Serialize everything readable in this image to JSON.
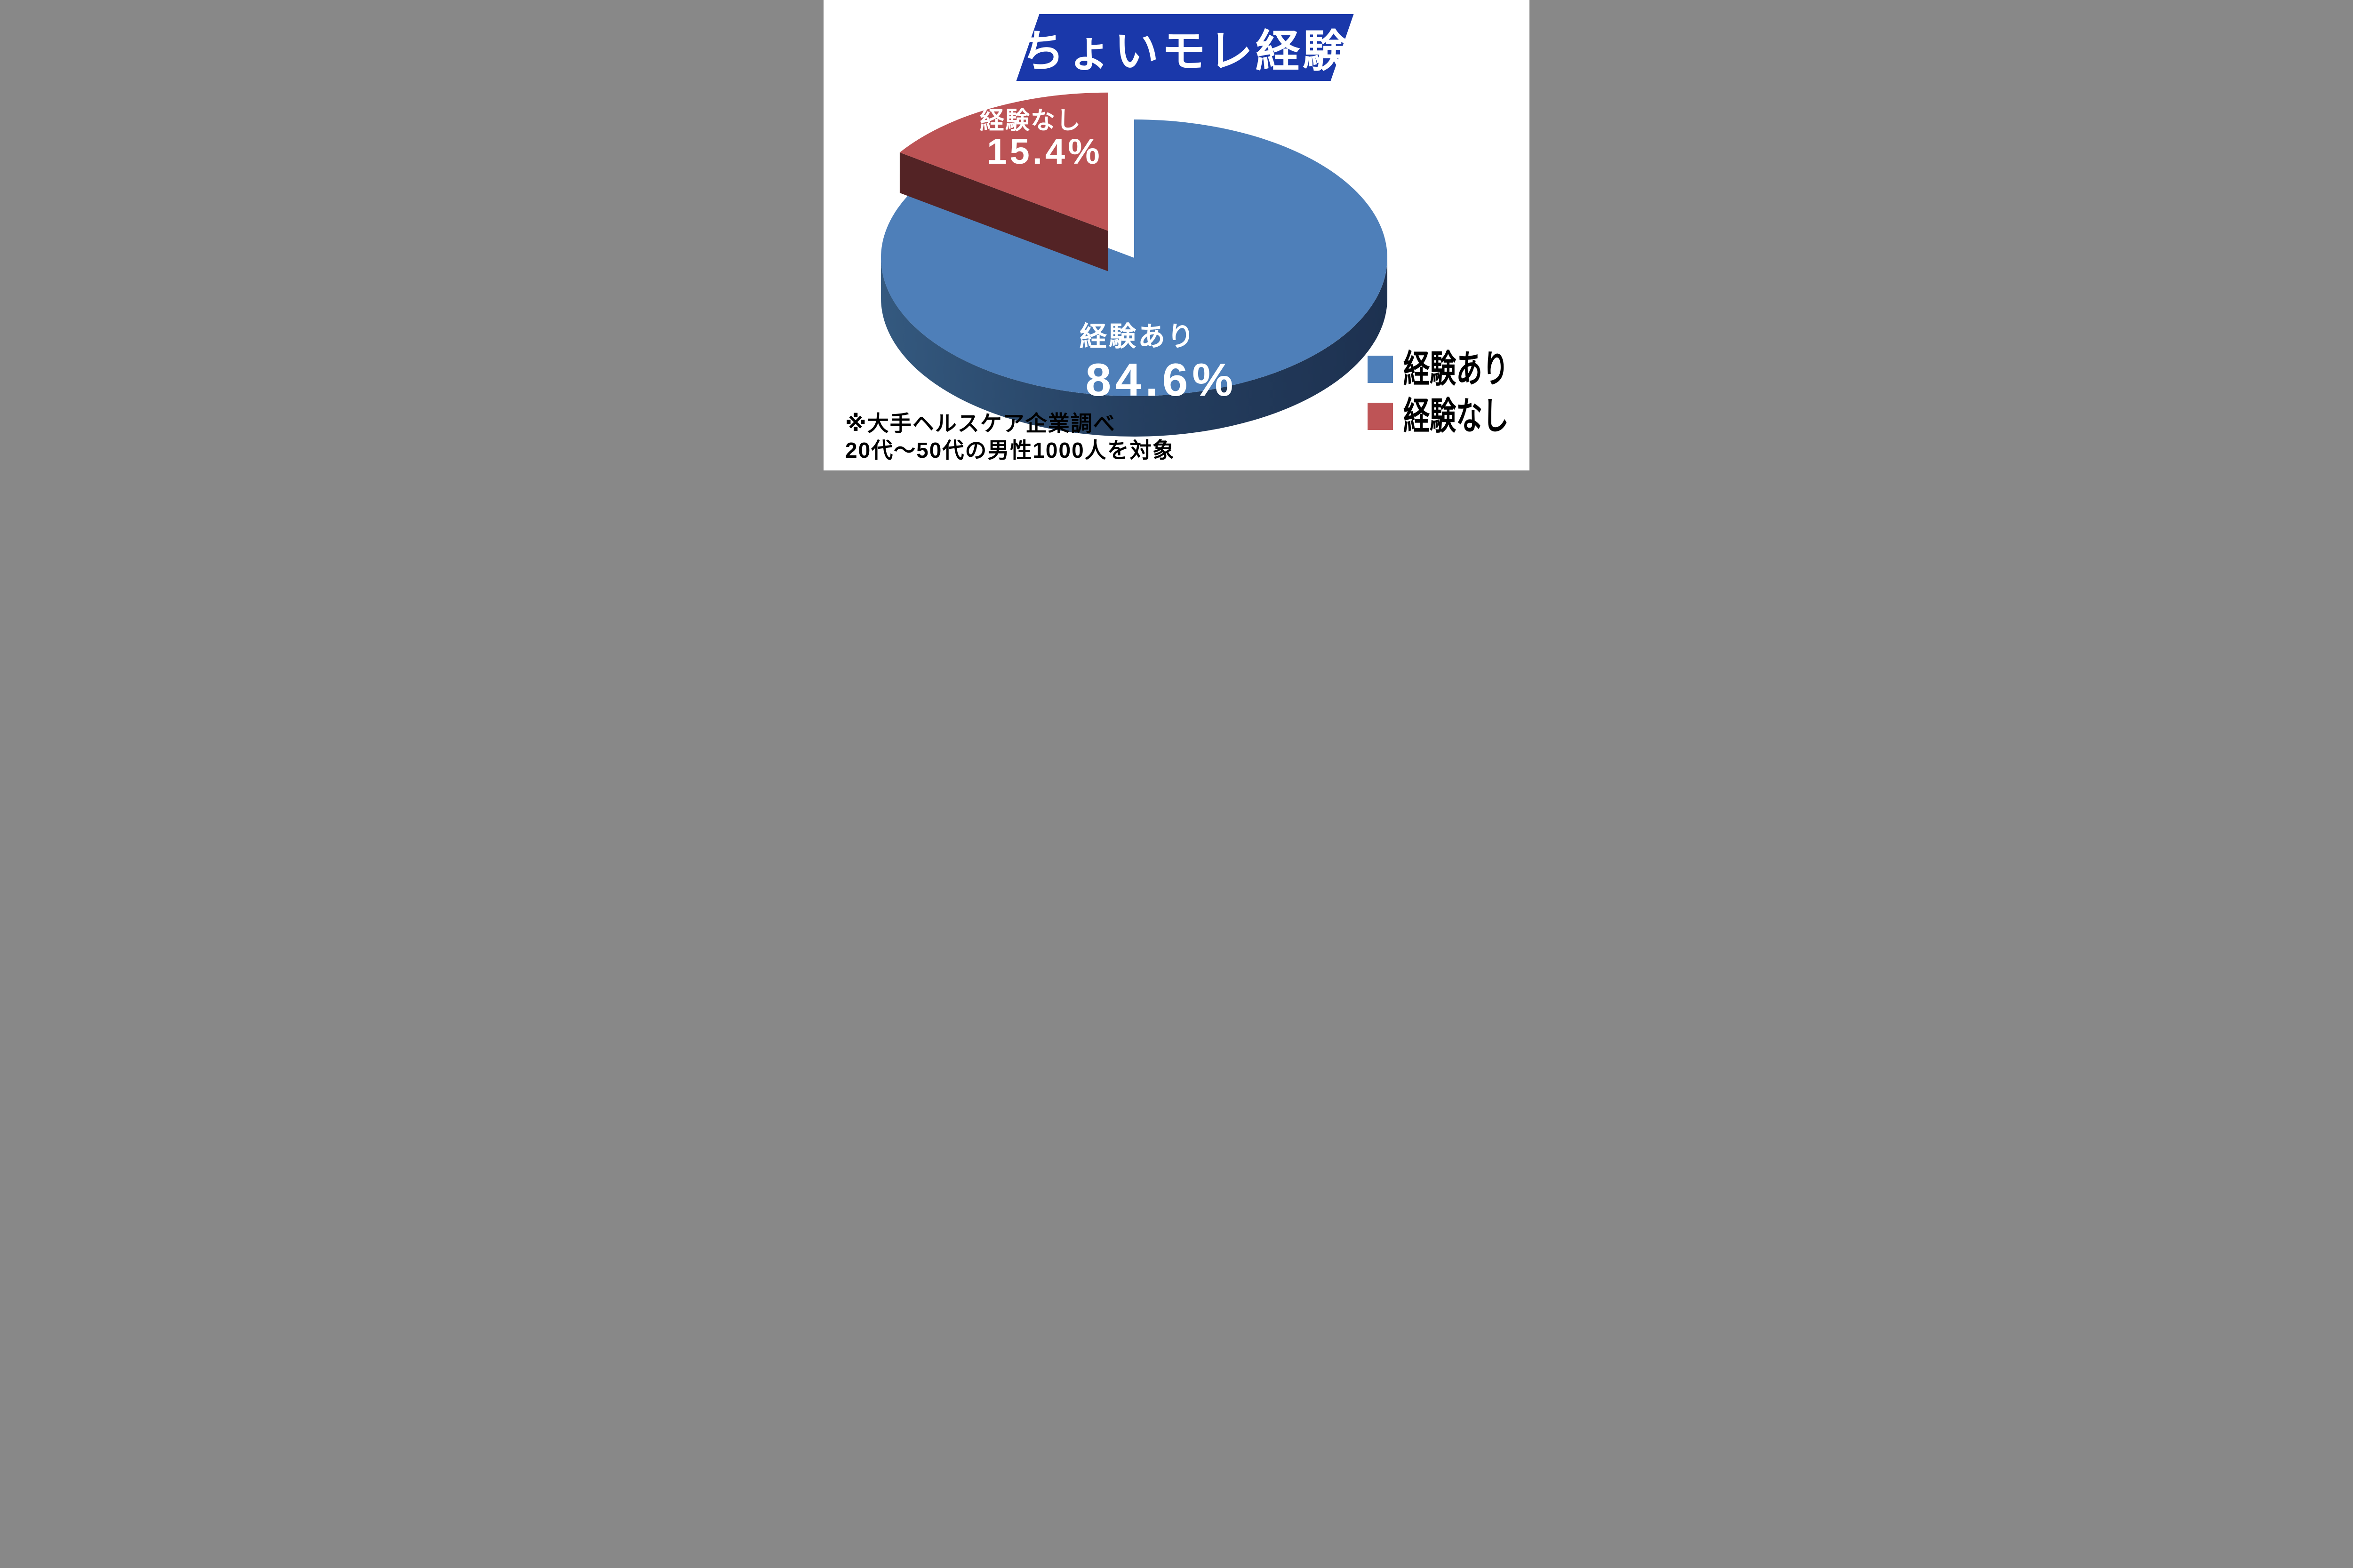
{
  "title_banner": {
    "text": "ちょいモレ経験",
    "bg_color": "#1A38AA",
    "text_color": "#FFFFFF"
  },
  "chart_data": {
    "type": "pie",
    "style": "3d-exploded",
    "title": "ちょいモレ経験",
    "start_angle_deg": 90,
    "direction": "clockwise",
    "legend_position": "bottom-right",
    "slices": [
      {
        "label": "経験あり",
        "value": 84.6,
        "display": "84.6%",
        "color": "#4E7FB9",
        "side_gradient": [
          "#34597F",
          "#253F60",
          "#1D3150"
        ],
        "exploded": false
      },
      {
        "label": "経験なし",
        "value": 15.4,
        "display": "15.4%",
        "color": "#BC5355",
        "side_color": "#532325",
        "exploded": true
      }
    ]
  },
  "legend": {
    "items": [
      {
        "label": "経験あり",
        "color": "#4E7FB9"
      },
      {
        "label": "経験なし",
        "color": "#BE5456"
      }
    ]
  },
  "footnote": {
    "line1": "※大手ヘルスケア企業調べ",
    "line2": "20代～50代の男性1000人を対象"
  }
}
